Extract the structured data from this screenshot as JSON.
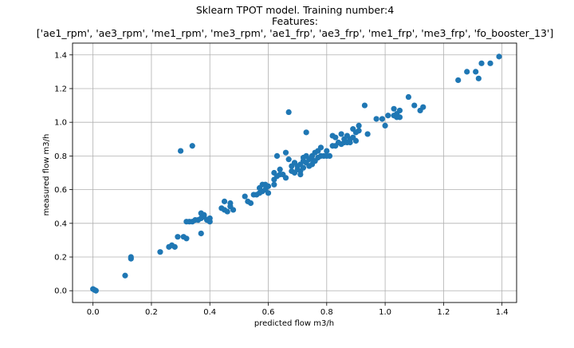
{
  "chart_data": {
    "type": "scatter",
    "title_lines": [
      "Sklearn TPOT model. Training number:4",
      "Features:",
      "['ae1_rpm', 'ae3_rpm', 'me1_rpm', 'me3_rpm', 'ae1_frp', 'ae3_frp', 'me1_frp', 'me3_frp', 'fo_booster_13']"
    ],
    "xlabel": "predicted flow m3/h",
    "ylabel": "measured flow m3/h",
    "xlim": [
      -0.07,
      1.45
    ],
    "ylim": [
      -0.07,
      1.47
    ],
    "xticks": [
      0.0,
      0.2,
      0.4,
      0.6,
      0.8,
      1.0,
      1.2,
      1.4
    ],
    "yticks": [
      0.0,
      0.2,
      0.4,
      0.6,
      0.8,
      1.0,
      1.2,
      1.4
    ],
    "xtick_labels": [
      "0.0",
      "0.2",
      "0.4",
      "0.6",
      "0.8",
      "1.0",
      "1.2",
      "1.4"
    ],
    "ytick_labels": [
      "0.0",
      "0.2",
      "0.4",
      "0.6",
      "0.8",
      "1.0",
      "1.2",
      "1.4"
    ],
    "grid": true,
    "marker_color": "#1f77b4",
    "points": [
      [
        0.0,
        0.01
      ],
      [
        0.01,
        0.0
      ],
      [
        0.005,
        0.005
      ],
      [
        0.11,
        0.09
      ],
      [
        0.13,
        0.19
      ],
      [
        0.13,
        0.2
      ],
      [
        0.23,
        0.23
      ],
      [
        0.26,
        0.26
      ],
      [
        0.27,
        0.27
      ],
      [
        0.28,
        0.26
      ],
      [
        0.29,
        0.32
      ],
      [
        0.31,
        0.32
      ],
      [
        0.32,
        0.31
      ],
      [
        0.3,
        0.83
      ],
      [
        0.34,
        0.86
      ],
      [
        0.37,
        0.34
      ],
      [
        0.32,
        0.41
      ],
      [
        0.33,
        0.41
      ],
      [
        0.34,
        0.41
      ],
      [
        0.35,
        0.42
      ],
      [
        0.36,
        0.42
      ],
      [
        0.37,
        0.43
      ],
      [
        0.38,
        0.44
      ],
      [
        0.39,
        0.42
      ],
      [
        0.4,
        0.41
      ],
      [
        0.4,
        0.43
      ],
      [
        0.37,
        0.46
      ],
      [
        0.38,
        0.45
      ],
      [
        0.44,
        0.49
      ],
      [
        0.45,
        0.48
      ],
      [
        0.45,
        0.53
      ],
      [
        0.46,
        0.47
      ],
      [
        0.47,
        0.5
      ],
      [
        0.47,
        0.52
      ],
      [
        0.48,
        0.48
      ],
      [
        0.52,
        0.56
      ],
      [
        0.53,
        0.53
      ],
      [
        0.54,
        0.52
      ],
      [
        0.55,
        0.57
      ],
      [
        0.56,
        0.57
      ],
      [
        0.57,
        0.58
      ],
      [
        0.57,
        0.61
      ],
      [
        0.58,
        0.59
      ],
      [
        0.58,
        0.63
      ],
      [
        0.59,
        0.6
      ],
      [
        0.6,
        0.58
      ],
      [
        0.6,
        0.62
      ],
      [
        0.59,
        0.63
      ],
      [
        0.62,
        0.63
      ],
      [
        0.62,
        0.66
      ],
      [
        0.62,
        0.7
      ],
      [
        0.63,
        0.68
      ],
      [
        0.63,
        0.8
      ],
      [
        0.64,
        0.69
      ],
      [
        0.64,
        0.72
      ],
      [
        0.65,
        0.69
      ],
      [
        0.66,
        0.67
      ],
      [
        0.66,
        0.82
      ],
      [
        0.67,
        0.78
      ],
      [
        0.67,
        1.06
      ],
      [
        0.68,
        0.71
      ],
      [
        0.68,
        0.74
      ],
      [
        0.69,
        0.7
      ],
      [
        0.69,
        0.76
      ],
      [
        0.7,
        0.72
      ],
      [
        0.7,
        0.74
      ],
      [
        0.71,
        0.69
      ],
      [
        0.71,
        0.71
      ],
      [
        0.71,
        0.75
      ],
      [
        0.72,
        0.73
      ],
      [
        0.72,
        0.77
      ],
      [
        0.72,
        0.79
      ],
      [
        0.73,
        0.76
      ],
      [
        0.73,
        0.8
      ],
      [
        0.73,
        0.94
      ],
      [
        0.74,
        0.74
      ],
      [
        0.74,
        0.78
      ],
      [
        0.75,
        0.75
      ],
      [
        0.75,
        0.78
      ],
      [
        0.75,
        0.8
      ],
      [
        0.76,
        0.77
      ],
      [
        0.76,
        0.82
      ],
      [
        0.77,
        0.79
      ],
      [
        0.77,
        0.83
      ],
      [
        0.78,
        0.8
      ],
      [
        0.78,
        0.85
      ],
      [
        0.79,
        0.8
      ],
      [
        0.8,
        0.8
      ],
      [
        0.8,
        0.83
      ],
      [
        0.81,
        0.8
      ],
      [
        0.82,
        0.86
      ],
      [
        0.82,
        0.92
      ],
      [
        0.83,
        0.86
      ],
      [
        0.83,
        0.91
      ],
      [
        0.84,
        0.88
      ],
      [
        0.85,
        0.87
      ],
      [
        0.85,
        0.93
      ],
      [
        0.86,
        0.88
      ],
      [
        0.86,
        0.9
      ],
      [
        0.87,
        0.88
      ],
      [
        0.87,
        0.92
      ],
      [
        0.88,
        0.88
      ],
      [
        0.88,
        0.9
      ],
      [
        0.89,
        0.96
      ],
      [
        0.89,
        0.91
      ],
      [
        0.9,
        0.89
      ],
      [
        0.9,
        0.94
      ],
      [
        0.91,
        0.95
      ],
      [
        0.91,
        0.98
      ],
      [
        0.93,
        1.1
      ],
      [
        0.94,
        0.93
      ],
      [
        0.97,
        1.02
      ],
      [
        0.99,
        1.02
      ],
      [
        1.0,
        0.98
      ],
      [
        1.01,
        1.04
      ],
      [
        1.03,
        1.04
      ],
      [
        1.03,
        1.08
      ],
      [
        1.04,
        1.03
      ],
      [
        1.04,
        1.05
      ],
      [
        1.05,
        1.03
      ],
      [
        1.05,
        1.07
      ],
      [
        1.08,
        1.15
      ],
      [
        1.1,
        1.1
      ],
      [
        1.12,
        1.07
      ],
      [
        1.13,
        1.09
      ],
      [
        1.25,
        1.25
      ],
      [
        1.28,
        1.3
      ],
      [
        1.31,
        1.3
      ],
      [
        1.32,
        1.26
      ],
      [
        1.33,
        1.35
      ],
      [
        1.36,
        1.35
      ],
      [
        1.39,
        1.39
      ]
    ]
  }
}
